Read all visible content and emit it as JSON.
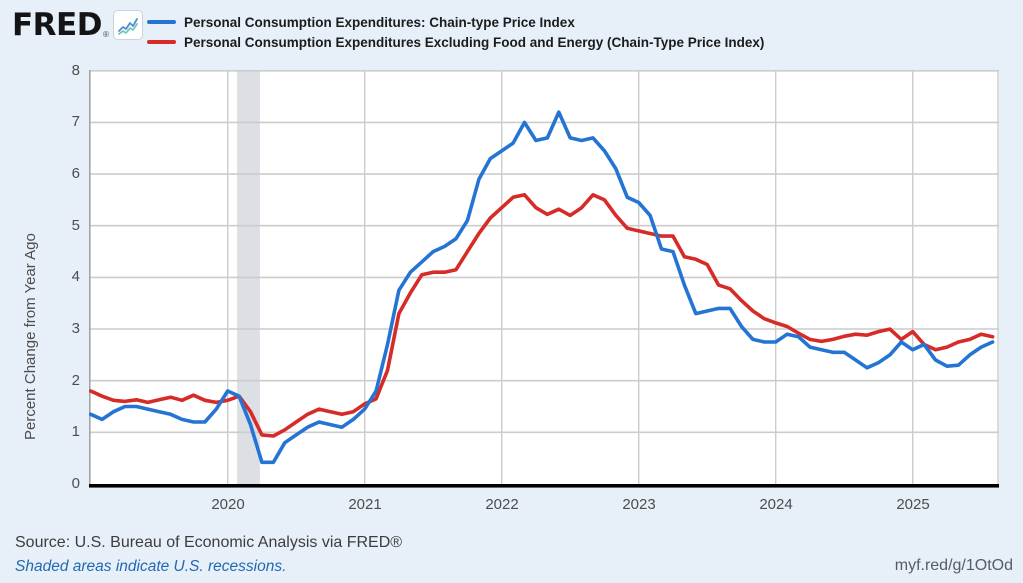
{
  "brand": {
    "logo_text": "FRED",
    "registered_mark": "®"
  },
  "legend": [
    {
      "label": "Personal Consumption Expenditures: Chain-type Price Index",
      "color": "#2474d4"
    },
    {
      "label": "Personal Consumption Expenditures Excluding Food and Energy (Chain-Type Price Index)",
      "color": "#d62b27"
    }
  ],
  "y_axis": {
    "title": "Percent Change from Year Ago",
    "ticks": [
      0,
      1,
      2,
      3,
      4,
      5,
      6,
      7,
      8
    ]
  },
  "x_axis": {
    "ticks": [
      "2020",
      "2021",
      "2022",
      "2023",
      "2024",
      "2025"
    ]
  },
  "footer": {
    "source_text": "Source: U.S. Bureau of Economic Analysis via FRED®",
    "recession_note": "Shaded areas indicate U.S. recessions.",
    "short_url": "myf.red/g/1OtOd"
  },
  "colors": {
    "background": "#e7f0f9",
    "plot_background": "#ffffff",
    "gridline": "#cccccc",
    "axis": "#000000",
    "recession_band": "#dcdfe4",
    "link_blue": "#2269b3"
  },
  "chart_data": {
    "type": "line",
    "frequency": "monthly",
    "x_start": "2019-01",
    "x_end": "2025-08",
    "x_tick_labels": [
      "2020",
      "2021",
      "2022",
      "2023",
      "2024",
      "2025"
    ],
    "ylabel": "Percent Change from Year Ago",
    "ylim": [
      0,
      8
    ],
    "grid": true,
    "legend_position": "top",
    "shaded_regions": [
      {
        "from": "2020-02",
        "to": "2020-04",
        "label": "U.S. recession"
      }
    ],
    "series": [
      {
        "name": "Personal Consumption Expenditures: Chain-type Price Index",
        "color": "#2474d4",
        "values": [
          1.35,
          1.25,
          1.4,
          1.5,
          1.5,
          1.45,
          1.4,
          1.35,
          1.25,
          1.2,
          1.2,
          1.45,
          1.8,
          1.7,
          1.15,
          0.42,
          0.42,
          0.8,
          0.95,
          1.1,
          1.2,
          1.15,
          1.1,
          1.25,
          1.45,
          1.8,
          2.7,
          3.75,
          4.1,
          4.3,
          4.5,
          4.6,
          4.75,
          5.1,
          5.9,
          6.3,
          6.45,
          6.6,
          7.0,
          6.65,
          6.7,
          7.2,
          6.7,
          6.65,
          6.7,
          6.45,
          6.1,
          5.55,
          5.45,
          5.2,
          4.55,
          4.5,
          3.85,
          3.3,
          3.35,
          3.4,
          3.4,
          3.05,
          2.8,
          2.75,
          2.75,
          2.9,
          2.85,
          2.65,
          2.6,
          2.55,
          2.55,
          2.4,
          2.25,
          2.35,
          2.5,
          2.75,
          2.6,
          2.7,
          2.4,
          2.28,
          2.3,
          2.5,
          2.65,
          2.75
        ]
      },
      {
        "name": "Personal Consumption Expenditures Excluding Food and Energy (Chain-Type Price Index)",
        "color": "#d62b27",
        "values": [
          1.8,
          1.7,
          1.62,
          1.6,
          1.63,
          1.58,
          1.63,
          1.68,
          1.62,
          1.72,
          1.62,
          1.58,
          1.62,
          1.7,
          1.4,
          0.95,
          0.93,
          1.05,
          1.2,
          1.35,
          1.45,
          1.4,
          1.35,
          1.4,
          1.55,
          1.65,
          2.2,
          3.3,
          3.7,
          4.05,
          4.1,
          4.1,
          4.15,
          4.5,
          4.85,
          5.15,
          5.35,
          5.55,
          5.6,
          5.35,
          5.22,
          5.32,
          5.2,
          5.35,
          5.6,
          5.5,
          5.2,
          4.95,
          4.9,
          4.85,
          4.8,
          4.8,
          4.4,
          4.35,
          4.25,
          3.85,
          3.78,
          3.55,
          3.35,
          3.2,
          3.12,
          3.05,
          2.92,
          2.8,
          2.76,
          2.8,
          2.86,
          2.9,
          2.88,
          2.95,
          3.0,
          2.8,
          2.95,
          2.7,
          2.6,
          2.65,
          2.75,
          2.8,
          2.9,
          2.85
        ]
      }
    ]
  }
}
